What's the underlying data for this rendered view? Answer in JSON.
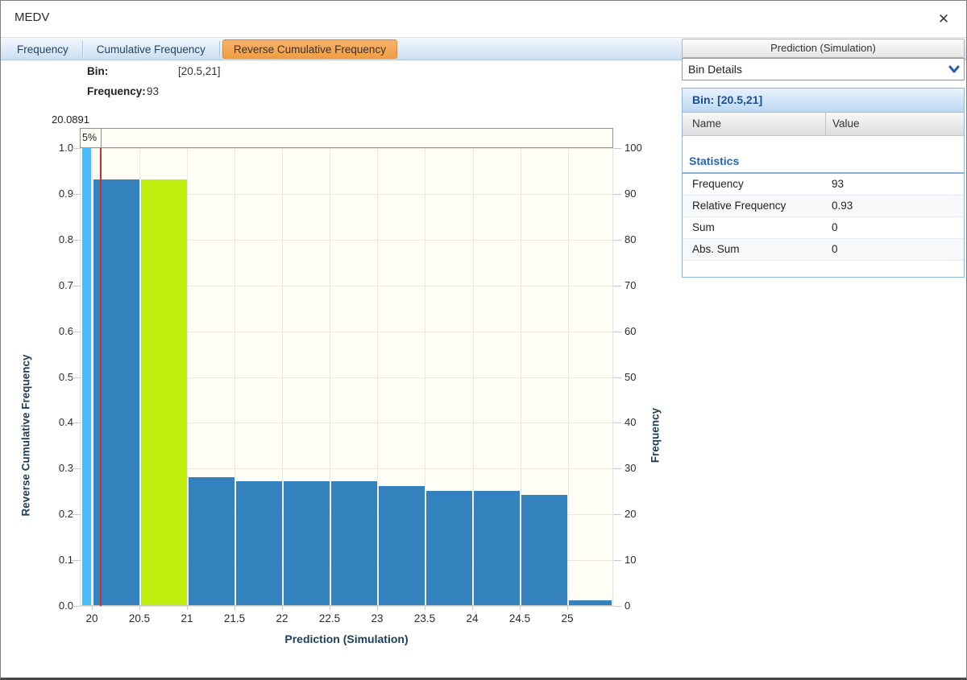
{
  "window": {
    "title": "MEDV",
    "close_glyph": "✕"
  },
  "tabs": [
    {
      "label": "Frequency",
      "active": false
    },
    {
      "label": "Cumulative Frequency",
      "active": false
    },
    {
      "label": "Reverse Cumulative Frequency",
      "active": true
    }
  ],
  "annotations": {
    "bin_label": "Bin:",
    "bin_value": "[20.5,21]",
    "frequency_label": "Frequency:",
    "frequency_value": "93"
  },
  "chart_data": {
    "type": "bar",
    "title": "",
    "xlabel": "Prediction (Simulation)",
    "ylabel_left": "Reverse Cumulative Frequency",
    "ylabel_right": "Frequency",
    "xlim": [
      19.873,
      25.483
    ],
    "ylim_left": [
      0,
      1
    ],
    "ylim_right": [
      0,
      100
    ],
    "x_ticks": [
      20,
      20.5,
      21,
      21.5,
      22,
      22.5,
      23,
      23.5,
      24,
      24.5,
      25
    ],
    "y_ticks_left": [
      0.0,
      0.1,
      0.2,
      0.3,
      0.4,
      0.5,
      0.6,
      0.7,
      0.8,
      0.9,
      1.0
    ],
    "y_ticks_right": [
      0,
      10,
      20,
      30,
      40,
      50,
      60,
      70,
      80,
      90,
      100
    ],
    "grid": true,
    "marker": {
      "x": 20.0891,
      "value_label": "20.0891",
      "segment_label": "5%"
    },
    "bars": [
      {
        "x0": 19.88,
        "x1": 19.99,
        "value": 1.0,
        "frequency": 100,
        "role": "tail"
      },
      {
        "x0": 20.0,
        "x1": 20.5,
        "value": 0.93,
        "frequency": 93,
        "role": "normal"
      },
      {
        "x0": 20.5,
        "x1": 21.0,
        "value": 0.93,
        "frequency": 93,
        "role": "selected"
      },
      {
        "x0": 21.0,
        "x1": 21.5,
        "value": 0.28,
        "frequency": 28,
        "role": "normal"
      },
      {
        "x0": 21.5,
        "x1": 22.0,
        "value": 0.27,
        "frequency": 27,
        "role": "normal"
      },
      {
        "x0": 22.0,
        "x1": 22.5,
        "value": 0.27,
        "frequency": 27,
        "role": "normal"
      },
      {
        "x0": 22.5,
        "x1": 23.0,
        "value": 0.27,
        "frequency": 27,
        "role": "normal"
      },
      {
        "x0": 23.0,
        "x1": 23.5,
        "value": 0.26,
        "frequency": 26,
        "role": "normal"
      },
      {
        "x0": 23.5,
        "x1": 24.0,
        "value": 0.25,
        "frequency": 25,
        "role": "normal"
      },
      {
        "x0": 24.0,
        "x1": 24.5,
        "value": 0.25,
        "frequency": 25,
        "role": "normal"
      },
      {
        "x0": 24.5,
        "x1": 25.0,
        "value": 0.24,
        "frequency": 24,
        "role": "normal"
      },
      {
        "x0": 25.0,
        "x1": 25.47,
        "value": 0.01,
        "frequency": 1,
        "role": "normal"
      }
    ],
    "colors": {
      "bar": "#3381bd",
      "tail": "#4db9f6",
      "selected": "#c1ee0f",
      "marker_line": "#d22d2d",
      "accent_tab": "#f0a24b"
    },
    "legend": "none"
  },
  "side_panel": {
    "header": "Prediction (Simulation)",
    "dropdown_value": "Bin Details",
    "bin_header": "Bin: [20.5,21]",
    "columns": {
      "name": "Name",
      "value": "Value"
    },
    "section_title": "Statistics",
    "rows": [
      {
        "name": "Frequency",
        "value": "93"
      },
      {
        "name": "Relative Frequency",
        "value": "0.93"
      },
      {
        "name": "Sum",
        "value": "0"
      },
      {
        "name": "Abs. Sum",
        "value": "0"
      }
    ]
  }
}
